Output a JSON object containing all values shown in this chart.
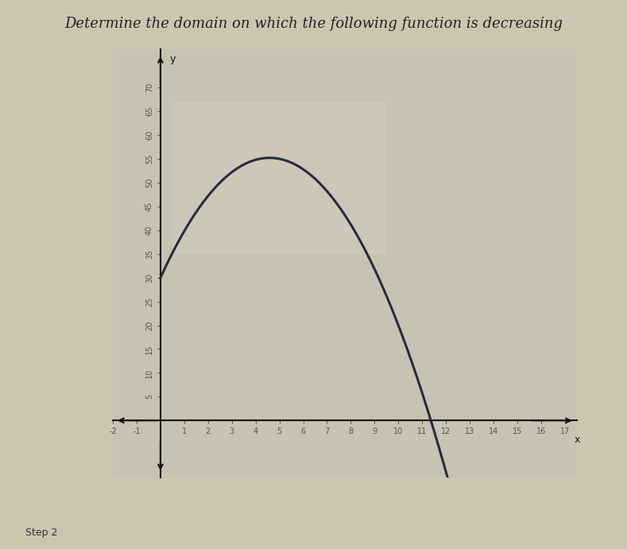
{
  "title": "Determine the domain on which the following function is decreasing",
  "title_fontsize": 13,
  "title_color": "#222222",
  "bg_color": "#cdc5b0",
  "plot_outer_color": "#bdb5a0",
  "plot_inner_color": "#c8c2b2",
  "highlight_color": "#d0ccbe",
  "curve_color": "#2a2a3a",
  "curve_linewidth": 2.2,
  "xlim": [
    -2,
    17.5
  ],
  "ylim": [
    -12,
    78
  ],
  "xtick_vals": [
    -2,
    -1,
    1,
    2,
    3,
    4,
    5,
    6,
    7,
    8,
    9,
    10,
    11,
    12,
    13,
    14,
    15,
    16,
    17
  ],
  "ytick_vals": [
    5,
    10,
    15,
    20,
    25,
    30,
    35,
    40,
    45,
    50,
    55,
    60,
    65,
    70
  ],
  "axis_color": "#111111",
  "tick_color": "#555555",
  "tick_fontsize": 7,
  "a": -1.2,
  "b": 11,
  "c": 30,
  "x_start": 0.0,
  "x_end": 14.0,
  "footer_text": "Step 2"
}
